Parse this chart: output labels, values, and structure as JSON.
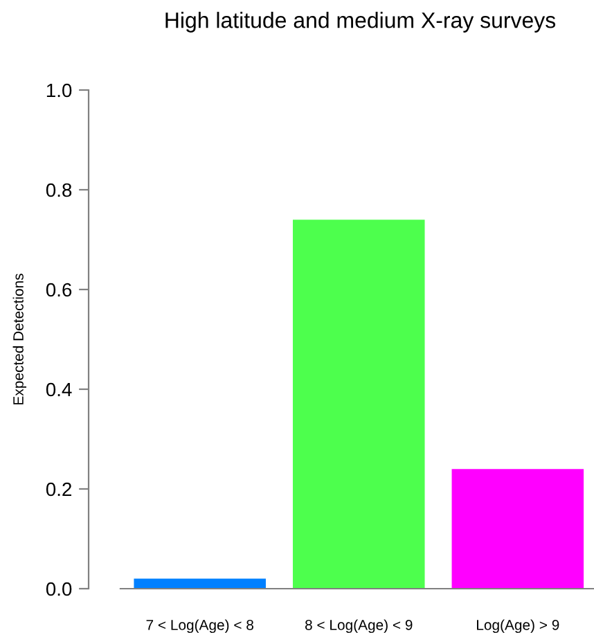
{
  "chart_data": {
    "type": "bar",
    "title": "High latitude and medium X-ray surveys",
    "ylabel": "Expected Detections",
    "categories": [
      "7 < Log(Age) < 8",
      "8 < Log(Age) < 9",
      "Log(Age) > 9"
    ],
    "values": [
      0.02,
      0.74,
      0.24
    ],
    "colors": [
      "#0080ff",
      "#4dff4d",
      "#ff00ff"
    ],
    "ylim": [
      0,
      1.0
    ],
    "yticks": [
      {
        "value": 0,
        "label": "0.0"
      },
      {
        "value": 0.2,
        "label": "0.2"
      },
      {
        "value": 0.4,
        "label": "0.4"
      },
      {
        "value": 0.6,
        "label": "0.6"
      },
      {
        "value": 0.8,
        "label": "0.8"
      },
      {
        "value": 1.0,
        "label": "1.0"
      }
    ],
    "grid": false,
    "legend": false
  }
}
